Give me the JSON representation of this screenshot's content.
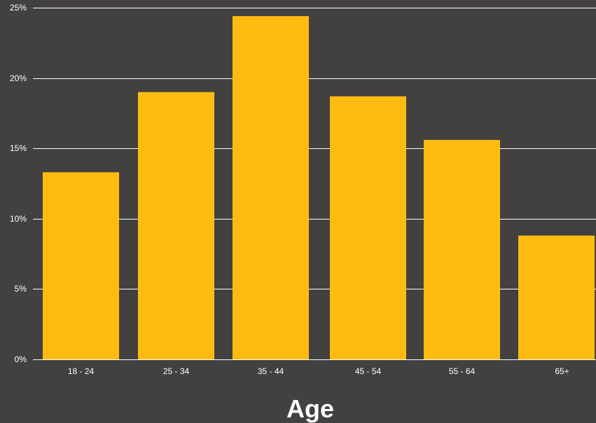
{
  "chart_data": {
    "type": "bar",
    "title": "",
    "xlabel": "Age",
    "ylabel": "",
    "categories": [
      "18 - 24",
      "25 - 34",
      "35 - 44",
      "45 - 54",
      "55 - 64",
      "65+"
    ],
    "values": [
      13.3,
      19.0,
      24.4,
      18.7,
      15.6,
      8.8
    ],
    "ylim": [
      0,
      25
    ],
    "yticks": [
      0,
      5,
      10,
      15,
      20,
      25
    ],
    "ytick_labels": [
      "0%",
      "5%",
      "10%",
      "15%",
      "20%",
      "25%"
    ],
    "grid": true,
    "legend": "none",
    "colors": {
      "background": "#434040",
      "bar": "#ffbc10",
      "grid": "#ffffff",
      "text": "#ffffff"
    }
  }
}
